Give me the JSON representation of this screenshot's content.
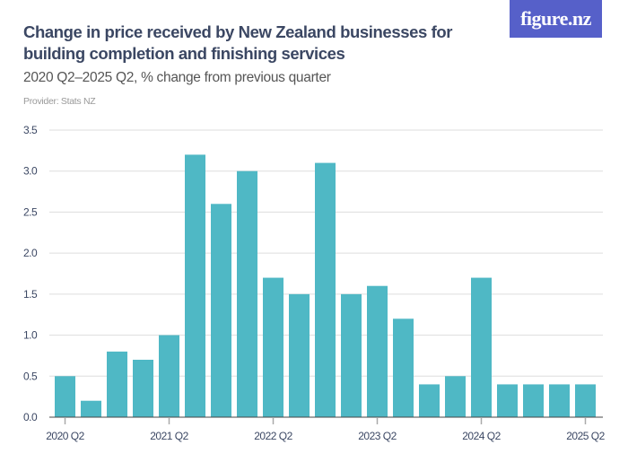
{
  "header": {
    "title": "Change in price received by New Zealand businesses for building completion and finishing services",
    "subtitle": "2020 Q2–2025 Q2, % change from previous quarter",
    "provider": "Provider: Stats NZ",
    "logo_text": "figure.nz"
  },
  "colors": {
    "bar": "#4fb8c5",
    "title": "#3b4763",
    "logo_bg": "#5660c9",
    "grid": "#dddddd"
  },
  "chart_data": {
    "type": "bar",
    "categories": [
      "2020 Q2",
      "2020 Q3",
      "2020 Q4",
      "2021 Q1",
      "2021 Q2",
      "2021 Q3",
      "2021 Q4",
      "2022 Q1",
      "2022 Q2",
      "2022 Q3",
      "2022 Q4",
      "2023 Q1",
      "2023 Q2",
      "2023 Q3",
      "2023 Q4",
      "2024 Q1",
      "2024 Q2",
      "2024 Q3",
      "2024 Q4",
      "2025 Q1",
      "2025 Q2"
    ],
    "values": [
      0.5,
      0.2,
      0.8,
      0.7,
      1.0,
      3.2,
      2.6,
      3.0,
      1.7,
      1.5,
      3.1,
      1.5,
      1.6,
      1.2,
      0.4,
      0.5,
      1.7,
      0.4,
      0.4,
      0.4,
      0.4
    ],
    "x_tick_labels": [
      "2020 Q2",
      "2021 Q2",
      "2022 Q2",
      "2023 Q2",
      "2024 Q2",
      "2025 Q2"
    ],
    "y_ticks": [
      "0.0",
      "0.5",
      "1.0",
      "1.5",
      "2.0",
      "2.5",
      "3.0",
      "3.5"
    ],
    "ylim": [
      0,
      3.5
    ],
    "grid": true,
    "legend": "none"
  }
}
